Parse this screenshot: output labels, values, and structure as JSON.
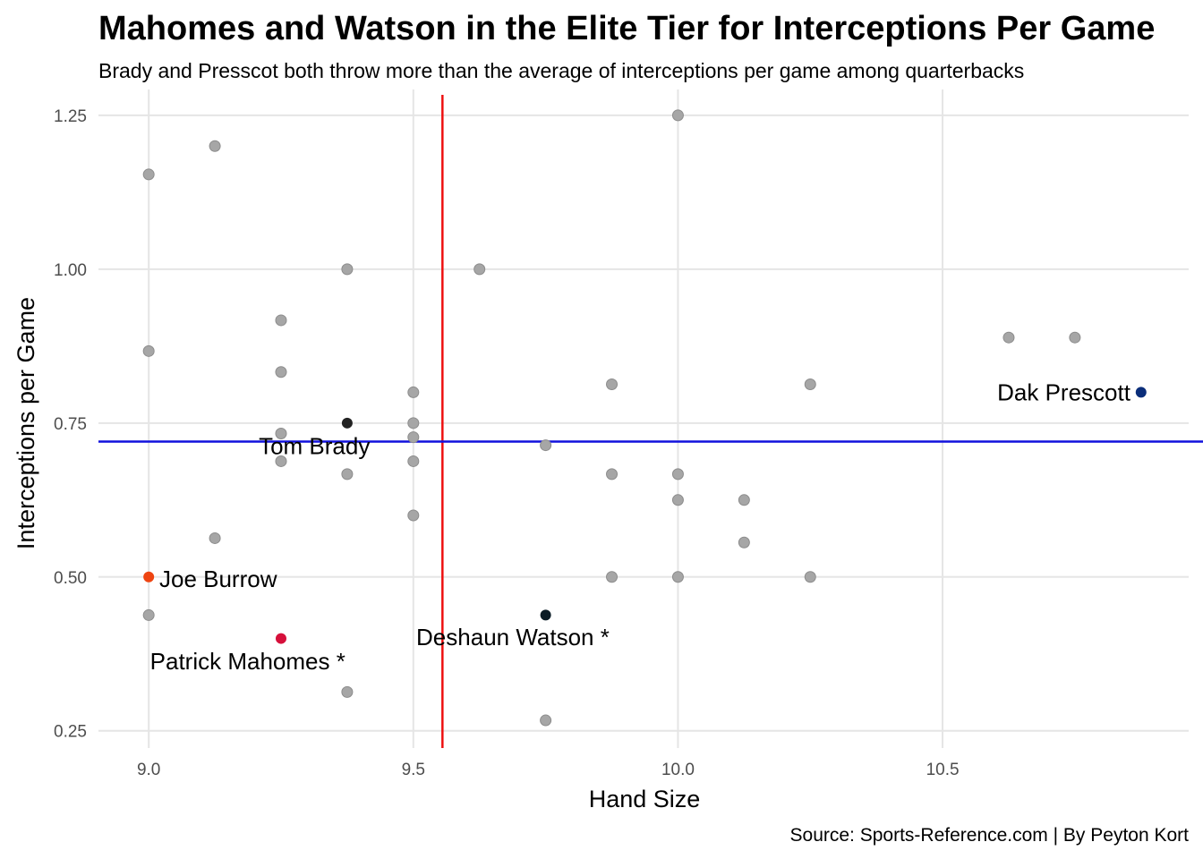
{
  "chart_data": {
    "type": "scatter",
    "title": "Mahomes and Watson in the Elite Tier for Interceptions Per Game",
    "subtitle": "Brady and Presscot both throw more than the average of interceptions per game among quarterbacks",
    "caption": "Source: Sports-Reference.com | By Peyton Kort",
    "xlabel": "Hand Size",
    "ylabel": "Interceptions per Game",
    "xlim": [
      8.905,
      10.965
    ],
    "ylim": [
      0.222,
      1.292
    ],
    "x_ticks": [
      9.0,
      9.5,
      10.0,
      10.5
    ],
    "x_tick_labels": [
      "9.0",
      "9.5",
      "10.0",
      "10.5"
    ],
    "y_ticks": [
      0.25,
      0.5,
      0.75,
      1.0,
      1.25
    ],
    "y_tick_labels": [
      "0.25",
      "0.50",
      "0.75",
      "1.00",
      "1.25"
    ],
    "grid": true,
    "reference_lines": {
      "vertical_x": 9.555,
      "vertical_color": "#ee1111",
      "horizontal_y": 0.72,
      "horizontal_color": "#1111dd"
    },
    "base_point_color": "#a6a6a6",
    "points": [
      {
        "x": 9.0,
        "y": 1.154
      },
      {
        "x": 9.0,
        "y": 0.867
      },
      {
        "x": 9.0,
        "y": 0.438
      },
      {
        "x": 9.125,
        "y": 1.2
      },
      {
        "x": 9.125,
        "y": 0.563
      },
      {
        "x": 9.25,
        "y": 0.917
      },
      {
        "x": 9.25,
        "y": 0.833
      },
      {
        "x": 9.25,
        "y": 0.733
      },
      {
        "x": 9.25,
        "y": 0.688
      },
      {
        "x": 9.375,
        "y": 1.0
      },
      {
        "x": 9.375,
        "y": 0.667
      },
      {
        "x": 9.375,
        "y": 0.313
      },
      {
        "x": 9.5,
        "y": 0.8
      },
      {
        "x": 9.5,
        "y": 0.75
      },
      {
        "x": 9.5,
        "y": 0.727
      },
      {
        "x": 9.5,
        "y": 0.688
      },
      {
        "x": 9.5,
        "y": 0.6
      },
      {
        "x": 9.625,
        "y": 1.0
      },
      {
        "x": 9.75,
        "y": 0.714
      },
      {
        "x": 9.75,
        "y": 0.267
      },
      {
        "x": 9.875,
        "y": 0.813
      },
      {
        "x": 9.875,
        "y": 0.667
      },
      {
        "x": 9.875,
        "y": 0.5
      },
      {
        "x": 10.0,
        "y": 1.25
      },
      {
        "x": 10.0,
        "y": 0.667
      },
      {
        "x": 10.0,
        "y": 0.625
      },
      {
        "x": 10.0,
        "y": 0.5
      },
      {
        "x": 10.125,
        "y": 0.625
      },
      {
        "x": 10.125,
        "y": 0.556
      },
      {
        "x": 10.25,
        "y": 0.813
      },
      {
        "x": 10.25,
        "y": 0.5
      },
      {
        "x": 10.625,
        "y": 0.889
      },
      {
        "x": 10.75,
        "y": 0.889
      }
    ],
    "highlighted": [
      {
        "label": "Tom Brady",
        "x": 9.375,
        "y": 0.75,
        "color": "#222222",
        "label_anchor": "middle",
        "label_dx": -0.062,
        "label_dy": -0.037
      },
      {
        "label": "Dak Prescott",
        "x": 10.875,
        "y": 0.8,
        "color": "#0b2e7a",
        "label_anchor": "end",
        "label_dx": -0.02,
        "label_dy": 0.0
      },
      {
        "label": "Joe Burrow",
        "x": 9.0,
        "y": 0.5,
        "color": "#ee4411",
        "label_anchor": "start",
        "label_dx": 0.02,
        "label_dy": -0.003
      },
      {
        "label": "Patrick Mahomes *",
        "x": 9.25,
        "y": 0.4,
        "color": "#d6103b",
        "label_anchor": "middle",
        "label_dx": -0.063,
        "label_dy": -0.037
      },
      {
        "label": "Deshaun Watson *",
        "x": 9.75,
        "y": 0.438,
        "color": "#0b1c26",
        "label_anchor": "middle",
        "label_dx": -0.062,
        "label_dy": -0.036
      }
    ]
  }
}
